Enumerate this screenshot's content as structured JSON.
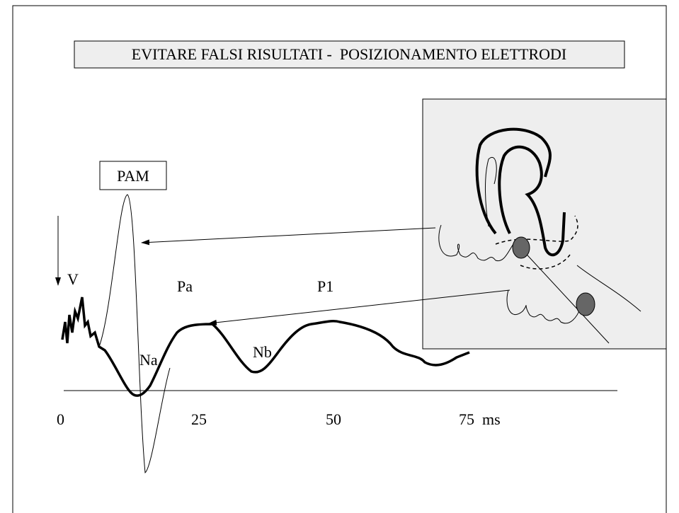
{
  "header": {
    "title": "EVITARE FALSI RISULTATI -  POSIZIONAMENTO ELETTRODI"
  },
  "labels": {
    "pam": "PAM",
    "v": "V",
    "pa": "Pa",
    "p1": "P1",
    "na": "Na",
    "nb": "Nb"
  },
  "axis": {
    "ticks": [
      "0",
      "25",
      "50",
      "75  ms"
    ]
  }
}
